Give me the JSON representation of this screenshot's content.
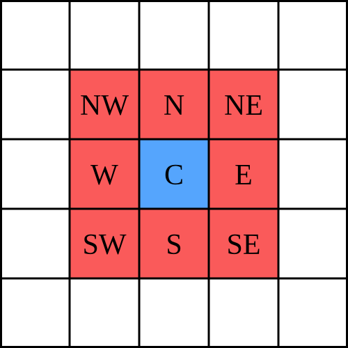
{
  "grid": {
    "rows": 5,
    "cols": 5,
    "line_color": "#000000",
    "background_color": "#ffffff",
    "neighbor_color": "#fa5a5a",
    "center_color": "#55a5fd"
  },
  "cells": [
    {
      "row": 1,
      "col": 1,
      "label": "NW",
      "role": "neighbor"
    },
    {
      "row": 1,
      "col": 2,
      "label": "N",
      "role": "neighbor"
    },
    {
      "row": 1,
      "col": 3,
      "label": "NE",
      "role": "neighbor"
    },
    {
      "row": 2,
      "col": 1,
      "label": "W",
      "role": "neighbor"
    },
    {
      "row": 2,
      "col": 2,
      "label": "C",
      "role": "center"
    },
    {
      "row": 2,
      "col": 3,
      "label": "E",
      "role": "neighbor"
    },
    {
      "row": 3,
      "col": 1,
      "label": "SW",
      "role": "neighbor"
    },
    {
      "row": 3,
      "col": 2,
      "label": "S",
      "role": "neighbor"
    },
    {
      "row": 3,
      "col": 3,
      "label": "SE",
      "role": "neighbor"
    }
  ]
}
